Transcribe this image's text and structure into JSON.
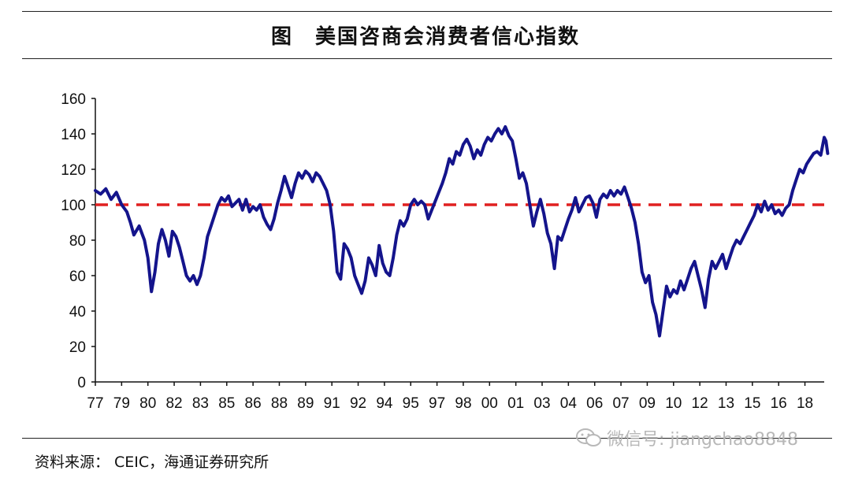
{
  "figure": {
    "title": "图　美国咨商会消费者信心指数",
    "source": "资料来源： CEIC，海通证券研究所",
    "watermark": "微信号: jiangchao8848"
  },
  "chart_data": {
    "type": "line",
    "title": "图　美国咨商会消费者信心指数",
    "xlabel": "",
    "ylabel": "",
    "ylim": [
      0,
      160
    ],
    "yticks": [
      0,
      20,
      40,
      60,
      80,
      100,
      120,
      140,
      160
    ],
    "xlim": [
      1977.0,
      2018.6
    ],
    "xticks": [
      {
        "label": "77",
        "x": 1977.0
      },
      {
        "label": "79",
        "x": 1978.5
      },
      {
        "label": "80",
        "x": 1980.0
      },
      {
        "label": "82",
        "x": 1981.5
      },
      {
        "label": "83",
        "x": 1983.0
      },
      {
        "label": "85",
        "x": 1984.5
      },
      {
        "label": "86",
        "x": 1986.0
      },
      {
        "label": "88",
        "x": 1987.5
      },
      {
        "label": "89",
        "x": 1989.0
      },
      {
        "label": "91",
        "x": 1990.5
      },
      {
        "label": "92",
        "x": 1992.0
      },
      {
        "label": "94",
        "x": 1993.5
      },
      {
        "label": "95",
        "x": 1995.0
      },
      {
        "label": "97",
        "x": 1996.5
      },
      {
        "label": "98",
        "x": 1998.0
      },
      {
        "label": "00",
        "x": 1999.5
      },
      {
        "label": "01",
        "x": 2001.0
      },
      {
        "label": "03",
        "x": 2002.5
      },
      {
        "label": "04",
        "x": 2004.0
      },
      {
        "label": "06",
        "x": 2005.5
      },
      {
        "label": "07",
        "x": 2007.0
      },
      {
        "label": "09",
        "x": 2008.5
      },
      {
        "label": "10",
        "x": 2010.0
      },
      {
        "label": "12",
        "x": 2011.5
      },
      {
        "label": "13",
        "x": 2013.0
      },
      {
        "label": "15",
        "x": 2014.5
      },
      {
        "label": "16",
        "x": 2016.0
      },
      {
        "label": "18",
        "x": 2017.5
      }
    ],
    "reference_line": {
      "y": 100,
      "color": "#e02020",
      "style": "dashed"
    },
    "series": [
      {
        "color": "#14148c",
        "points": [
          [
            1977.0,
            108
          ],
          [
            1977.3,
            106
          ],
          [
            1977.6,
            109
          ],
          [
            1977.9,
            103
          ],
          [
            1978.2,
            107
          ],
          [
            1978.5,
            100
          ],
          [
            1978.8,
            96
          ],
          [
            1979.0,
            90
          ],
          [
            1979.2,
            83
          ],
          [
            1979.5,
            88
          ],
          [
            1979.8,
            80
          ],
          [
            1980.0,
            70
          ],
          [
            1980.2,
            51
          ],
          [
            1980.4,
            62
          ],
          [
            1980.6,
            78
          ],
          [
            1980.8,
            86
          ],
          [
            1981.0,
            80
          ],
          [
            1981.2,
            71
          ],
          [
            1981.4,
            85
          ],
          [
            1981.6,
            82
          ],
          [
            1981.8,
            76
          ],
          [
            1982.0,
            68
          ],
          [
            1982.2,
            60
          ],
          [
            1982.4,
            57
          ],
          [
            1982.6,
            60
          ],
          [
            1982.8,
            55
          ],
          [
            1983.0,
            60
          ],
          [
            1983.2,
            70
          ],
          [
            1983.4,
            82
          ],
          [
            1983.6,
            88
          ],
          [
            1983.8,
            94
          ],
          [
            1984.0,
            100
          ],
          [
            1984.2,
            104
          ],
          [
            1984.4,
            102
          ],
          [
            1984.6,
            105
          ],
          [
            1984.8,
            99
          ],
          [
            1985.0,
            101
          ],
          [
            1985.2,
            103
          ],
          [
            1985.4,
            97
          ],
          [
            1985.6,
            103
          ],
          [
            1985.8,
            96
          ],
          [
            1986.0,
            99
          ],
          [
            1986.2,
            97
          ],
          [
            1986.4,
            100
          ],
          [
            1986.6,
            93
          ],
          [
            1986.8,
            89
          ],
          [
            1987.0,
            86
          ],
          [
            1987.2,
            92
          ],
          [
            1987.4,
            101
          ],
          [
            1987.6,
            108
          ],
          [
            1987.8,
            116
          ],
          [
            1988.0,
            110
          ],
          [
            1988.2,
            104
          ],
          [
            1988.4,
            112
          ],
          [
            1988.6,
            118
          ],
          [
            1988.8,
            115
          ],
          [
            1989.0,
            119
          ],
          [
            1989.2,
            117
          ],
          [
            1989.4,
            113
          ],
          [
            1989.6,
            118
          ],
          [
            1989.8,
            116
          ],
          [
            1990.0,
            112
          ],
          [
            1990.2,
            108
          ],
          [
            1990.4,
            100
          ],
          [
            1990.6,
            85
          ],
          [
            1990.8,
            62
          ],
          [
            1991.0,
            58
          ],
          [
            1991.2,
            78
          ],
          [
            1991.4,
            75
          ],
          [
            1991.6,
            70
          ],
          [
            1991.8,
            60
          ],
          [
            1992.0,
            55
          ],
          [
            1992.2,
            50
          ],
          [
            1992.4,
            57
          ],
          [
            1992.6,
            70
          ],
          [
            1992.8,
            66
          ],
          [
            1993.0,
            60
          ],
          [
            1993.2,
            77
          ],
          [
            1993.4,
            67
          ],
          [
            1993.6,
            62
          ],
          [
            1993.8,
            60
          ],
          [
            1994.0,
            70
          ],
          [
            1994.2,
            83
          ],
          [
            1994.4,
            91
          ],
          [
            1994.6,
            88
          ],
          [
            1994.8,
            92
          ],
          [
            1995.0,
            100
          ],
          [
            1995.2,
            103
          ],
          [
            1995.4,
            100
          ],
          [
            1995.6,
            102
          ],
          [
            1995.8,
            100
          ],
          [
            1996.0,
            92
          ],
          [
            1996.2,
            97
          ],
          [
            1996.4,
            102
          ],
          [
            1996.6,
            107
          ],
          [
            1996.8,
            112
          ],
          [
            1997.0,
            118
          ],
          [
            1997.2,
            126
          ],
          [
            1997.4,
            123
          ],
          [
            1997.6,
            130
          ],
          [
            1997.8,
            128
          ],
          [
            1998.0,
            134
          ],
          [
            1998.2,
            137
          ],
          [
            1998.4,
            133
          ],
          [
            1998.6,
            126
          ],
          [
            1998.8,
            131
          ],
          [
            1999.0,
            128
          ],
          [
            1999.2,
            134
          ],
          [
            1999.4,
            138
          ],
          [
            1999.6,
            136
          ],
          [
            1999.8,
            140
          ],
          [
            2000.0,
            143
          ],
          [
            2000.2,
            140
          ],
          [
            2000.4,
            144
          ],
          [
            2000.6,
            139
          ],
          [
            2000.8,
            136
          ],
          [
            2001.0,
            126
          ],
          [
            2001.2,
            115
          ],
          [
            2001.4,
            118
          ],
          [
            2001.6,
            112
          ],
          [
            2001.8,
            100
          ],
          [
            2002.0,
            88
          ],
          [
            2002.2,
            96
          ],
          [
            2002.4,
            103
          ],
          [
            2002.6,
            95
          ],
          [
            2002.8,
            84
          ],
          [
            2003.0,
            78
          ],
          [
            2003.2,
            64
          ],
          [
            2003.4,
            82
          ],
          [
            2003.6,
            80
          ],
          [
            2003.8,
            86
          ],
          [
            2004.0,
            92
          ],
          [
            2004.2,
            97
          ],
          [
            2004.4,
            104
          ],
          [
            2004.6,
            96
          ],
          [
            2004.8,
            100
          ],
          [
            2005.0,
            104
          ],
          [
            2005.2,
            105
          ],
          [
            2005.4,
            101
          ],
          [
            2005.6,
            93
          ],
          [
            2005.8,
            103
          ],
          [
            2006.0,
            106
          ],
          [
            2006.2,
            104
          ],
          [
            2006.4,
            108
          ],
          [
            2006.6,
            105
          ],
          [
            2006.8,
            108
          ],
          [
            2007.0,
            106
          ],
          [
            2007.2,
            110
          ],
          [
            2007.4,
            104
          ],
          [
            2007.6,
            98
          ],
          [
            2007.8,
            90
          ],
          [
            2008.0,
            78
          ],
          [
            2008.2,
            62
          ],
          [
            2008.4,
            56
          ],
          [
            2008.6,
            60
          ],
          [
            2008.8,
            45
          ],
          [
            2009.0,
            38
          ],
          [
            2009.2,
            26
          ],
          [
            2009.4,
            40
          ],
          [
            2009.6,
            54
          ],
          [
            2009.8,
            48
          ],
          [
            2010.0,
            52
          ],
          [
            2010.2,
            50
          ],
          [
            2010.4,
            57
          ],
          [
            2010.6,
            52
          ],
          [
            2010.8,
            58
          ],
          [
            2011.0,
            64
          ],
          [
            2011.2,
            68
          ],
          [
            2011.4,
            60
          ],
          [
            2011.6,
            52
          ],
          [
            2011.8,
            42
          ],
          [
            2012.0,
            58
          ],
          [
            2012.2,
            68
          ],
          [
            2012.4,
            64
          ],
          [
            2012.6,
            68
          ],
          [
            2012.8,
            72
          ],
          [
            2013.0,
            64
          ],
          [
            2013.2,
            70
          ],
          [
            2013.4,
            76
          ],
          [
            2013.6,
            80
          ],
          [
            2013.8,
            78
          ],
          [
            2014.0,
            82
          ],
          [
            2014.2,
            86
          ],
          [
            2014.4,
            90
          ],
          [
            2014.6,
            94
          ],
          [
            2014.8,
            100
          ],
          [
            2015.0,
            96
          ],
          [
            2015.2,
            102
          ],
          [
            2015.4,
            97
          ],
          [
            2015.6,
            100
          ],
          [
            2015.8,
            95
          ],
          [
            2016.0,
            97
          ],
          [
            2016.2,
            94
          ],
          [
            2016.4,
            98
          ],
          [
            2016.6,
            100
          ],
          [
            2016.8,
            108
          ],
          [
            2017.0,
            114
          ],
          [
            2017.2,
            120
          ],
          [
            2017.4,
            118
          ],
          [
            2017.6,
            123
          ],
          [
            2017.8,
            126
          ],
          [
            2018.0,
            129
          ],
          [
            2018.2,
            130
          ],
          [
            2018.4,
            128
          ],
          [
            2018.6,
            138
          ],
          [
            2018.7,
            136
          ],
          [
            2018.8,
            129
          ]
        ]
      }
    ]
  }
}
